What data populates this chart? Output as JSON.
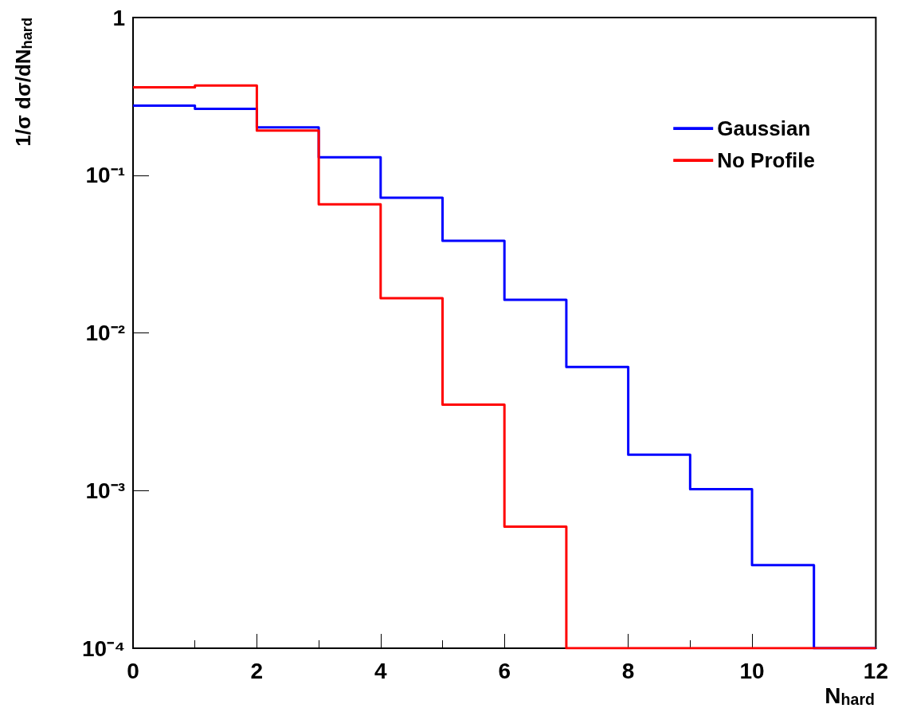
{
  "chart_data": {
    "type": "histogram",
    "xlabel": "N$_{hard}$",
    "ylabel": "1/σ dσ/dN$_{hard}$",
    "bins": [
      0,
      1,
      2,
      3,
      4,
      5,
      6,
      7,
      8,
      9,
      10,
      11,
      12
    ],
    "series": [
      {
        "name": "Gaussian",
        "color": "#0000ff",
        "values": [
          0.276,
          0.264,
          0.201,
          0.13,
          0.072,
          0.0384,
          0.0162,
          0.00608,
          0.00169,
          0.00102,
          0.000337,
          null
        ]
      },
      {
        "name": "No Profile",
        "color": "#ff0000",
        "values": [
          0.361,
          0.371,
          0.192,
          0.0653,
          0.0166,
          0.00351,
          0.00059,
          null,
          null,
          null,
          null,
          null
        ]
      }
    ],
    "log": true,
    "xlim": [
      0,
      12
    ],
    "xticks": [
      0,
      2,
      4,
      6,
      8,
      10,
      12
    ],
    "ylim": [
      0.0001,
      1
    ],
    "yticks": [
      {
        "value": 0.0001,
        "label": "10⁻⁴"
      },
      {
        "value": 0.001,
        "label": "10⁻³"
      },
      {
        "value": 0.01,
        "label": "10⁻²"
      },
      {
        "value": 0.1,
        "label": "10⁻¹"
      },
      {
        "value": 1,
        "label": "1"
      }
    ],
    "legend": "top right",
    "grid": false
  }
}
